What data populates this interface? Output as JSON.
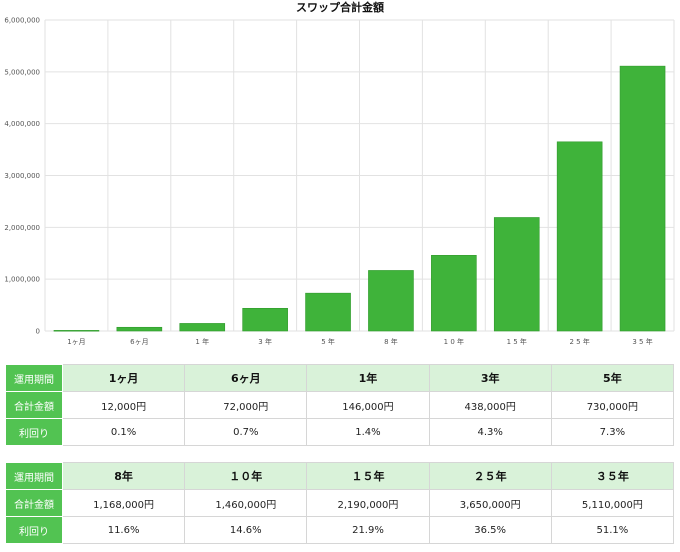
{
  "chart_data": {
    "type": "bar",
    "title": "スワップ合計金額",
    "categories": [
      "1ヶ月",
      "6ヶ月",
      "1年",
      "3年",
      "5年",
      "8年",
      "10年",
      "15年",
      "25年",
      "35年"
    ],
    "tick_labels": [
      "1ヶ月",
      "6ヶ月",
      "1 年",
      "3 年",
      "5 年",
      "8 年",
      "1 0 年",
      "1 5 年",
      "2 5 年",
      "3 5 年"
    ],
    "values": [
      12000,
      72000,
      146000,
      438000,
      730000,
      1168000,
      1460000,
      2190000,
      3650000,
      5110000
    ],
    "ylim": [
      0,
      6000000
    ],
    "yticks": [
      0,
      1000000,
      2000000,
      3000000,
      4000000,
      5000000,
      6000000
    ],
    "ytick_labels": [
      "0",
      "1,000,000",
      "2,000,000",
      "3,000,000",
      "4,000,000",
      "5,000,000",
      "6,000,000"
    ],
    "grid": true,
    "bar_color": "#3fb33a",
    "bar_stroke": "#2f9a2b",
    "grid_color": "#e2e2e2"
  },
  "tables": [
    {
      "row_labels": [
        "運用期間",
        "合計金額",
        "利回り"
      ],
      "periods": [
        "1ヶ月",
        "6ヶ月",
        "1年",
        "3年",
        "5年"
      ],
      "amounts": [
        "12,000円",
        "72,000円",
        "146,000円",
        "438,000円",
        "730,000円"
      ],
      "yields": [
        "0.1%",
        "0.7%",
        "1.4%",
        "4.3%",
        "7.3%"
      ]
    },
    {
      "row_labels": [
        "運用期間",
        "合計金額",
        "利回り"
      ],
      "periods": [
        "8年",
        "１０年",
        "１５年",
        "２５年",
        "３５年"
      ],
      "amounts": [
        "1,168,000円",
        "1,460,000円",
        "2,190,000円",
        "3,650,000円",
        "5,110,000円"
      ],
      "yields": [
        "11.6%",
        "14.6%",
        "21.9%",
        "36.5%",
        "51.1%"
      ]
    }
  ],
  "colors": {
    "row_header_bg": "#52c352",
    "period_row_bg": "#d9f2d9"
  }
}
